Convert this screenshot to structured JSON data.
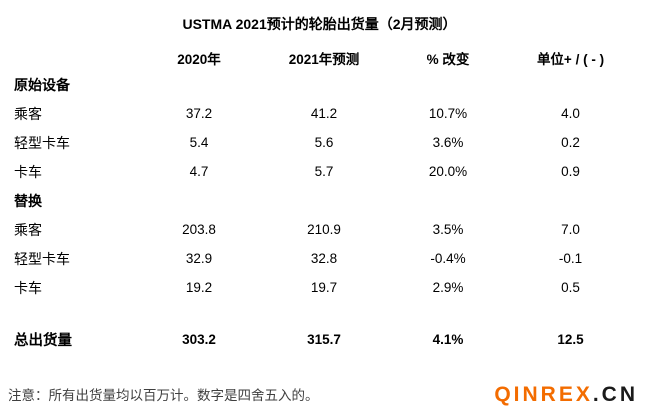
{
  "chart_data": {
    "type": "table",
    "title": "USTMA 2021预计的轮胎出货量（2月预测）",
    "columns": [
      "2020年",
      "2021年预测",
      "% 改变",
      "单位+ / ( - )"
    ],
    "sections": [
      {
        "label": "原始设备",
        "rows": [
          {
            "label": "乘客",
            "values": [
              "37.2",
              "41.2",
              "10.7%",
              "4.0"
            ]
          },
          {
            "label": "轻型卡车",
            "values": [
              "5.4",
              "5.6",
              "3.6%",
              "0.2"
            ]
          },
          {
            "label": "卡车",
            "values": [
              "4.7",
              "5.7",
              "20.0%",
              "0.9"
            ]
          }
        ]
      },
      {
        "label": "替换",
        "rows": [
          {
            "label": "乘客",
            "values": [
              "203.8",
              "210.9",
              "3.5%",
              "7.0"
            ]
          },
          {
            "label": "轻型卡车",
            "values": [
              "32.9",
              "32.8",
              "-0.4%",
              "-0.1"
            ]
          },
          {
            "label": "卡车",
            "values": [
              "19.2",
              "19.7",
              "2.9%",
              "0.5"
            ]
          }
        ]
      }
    ],
    "total": {
      "label": "总出货量",
      "values": [
        "303.2",
        "315.7",
        "4.1%",
        "12.5"
      ]
    },
    "note": "注意：所有出货量均以百万计。数字是四舍五入的。"
  },
  "footer": {
    "logo": {
      "primary": "QINREX",
      "suffix": ".CN",
      "primary_color": "#F36C00",
      "suffix_color": "#1A1A1A"
    }
  },
  "colors": {
    "background": "#FFFFFF",
    "text": "#000000",
    "note_gray": "#3F3F3F"
  }
}
